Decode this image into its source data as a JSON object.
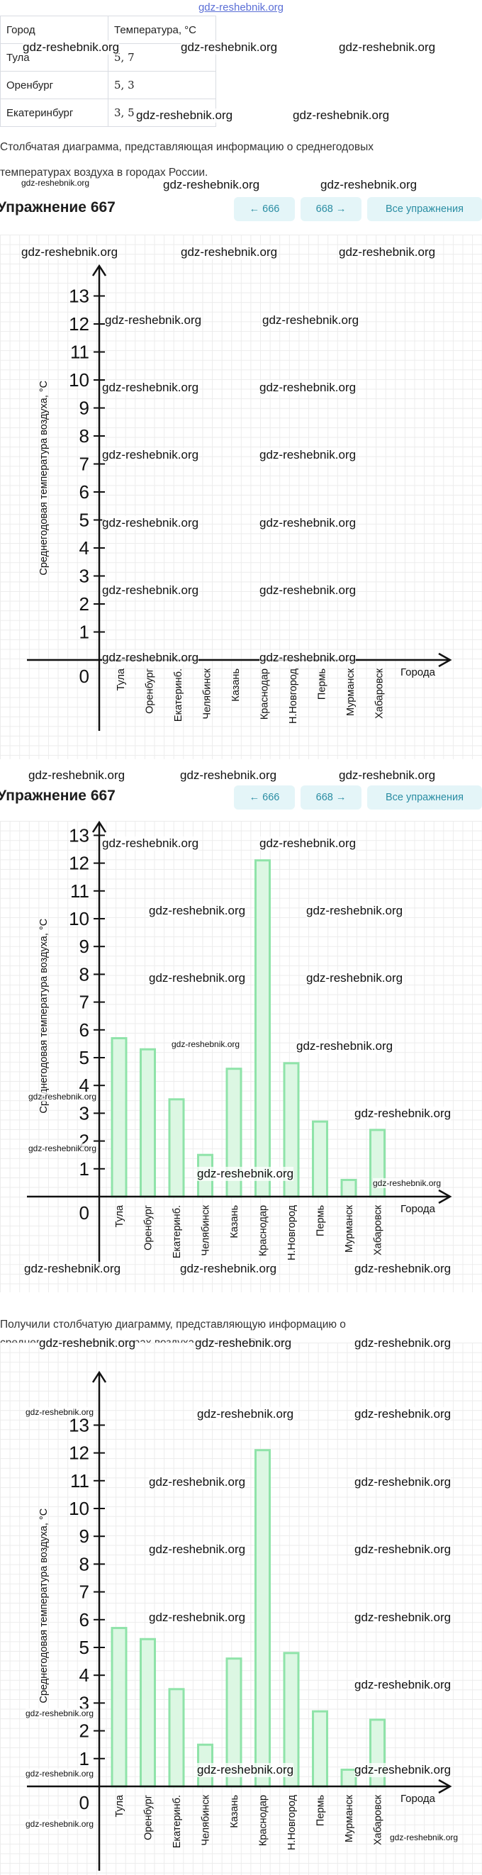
{
  "header": {
    "site_link": "gdz-reshebnik.org"
  },
  "table": {
    "headers": [
      "Город",
      "Температура, °C"
    ],
    "rows": [
      [
        "Тула",
        "5, 7"
      ],
      [
        "Оренбург",
        "5, 3"
      ],
      [
        "Екатеринбург",
        "3, 5"
      ]
    ]
  },
  "text": {
    "description_line1": "Столбчатая диаграмма, представляющая информацию о среднегодовых",
    "description_line2": "температурах воздуха в городах России.",
    "result_line1": "Получили столбчатую диаграмму, представляющую информацию о",
    "result_line2": "среднегодовых температурах воздуха в городах России."
  },
  "exercise": {
    "title": "Упражнение 667",
    "prev_label": "← 666",
    "next_label": "668 →",
    "all_label": "Все упражнения"
  },
  "watermark": "gdz-reshebnik.org",
  "colors": {
    "bar_fill": "#dcf7e3",
    "bar_stroke": "#8fe3a9",
    "nav_bg": "#e4f5f8",
    "nav_text": "#2a8da3"
  },
  "chart_data": [
    {
      "type": "bar",
      "title": "",
      "xlabel": "Города",
      "ylabel": "Среднегодовая температура воздуха, °C",
      "ylim": [
        0,
        13
      ],
      "origin_label": "0",
      "yticks": [
        1,
        2,
        3,
        4,
        5,
        6,
        7,
        8,
        9,
        10,
        11,
        12,
        13
      ],
      "categories": [
        "Тула",
        "Оренбург",
        "Екатеринб.",
        "Челябинск",
        "Казань",
        "Краснодар",
        "Н.Новгород",
        "Пермь",
        "Мурманск",
        "Хабаровск"
      ],
      "values": [
        0,
        0,
        0,
        0,
        0,
        0,
        0,
        0,
        0,
        0
      ],
      "show_bars": false
    },
    {
      "type": "bar",
      "title": "",
      "xlabel": "Города",
      "ylabel": "Среднегодовая температура воздуха, °C",
      "ylim": [
        0,
        13
      ],
      "origin_label": "0",
      "yticks": [
        1,
        2,
        3,
        4,
        5,
        6,
        7,
        8,
        9,
        10,
        11,
        12,
        13
      ],
      "categories": [
        "Тула",
        "Оренбург",
        "Екатеринб.",
        "Челябинск",
        "Казань",
        "Краснодар",
        "Н.Новгород",
        "Пермь",
        "Мурманск",
        "Хабаровск"
      ],
      "values": [
        5.7,
        5.3,
        3.5,
        1.5,
        4.6,
        12.1,
        4.8,
        2.7,
        0.6,
        2.4
      ],
      "show_bars": true
    },
    {
      "type": "bar",
      "title": "",
      "xlabel": "Города",
      "ylabel": "Среднегодовая температура воздуха, °C",
      "ylim": [
        0,
        13
      ],
      "origin_label": "0",
      "yticks": [
        1,
        2,
        3,
        4,
        5,
        6,
        7,
        8,
        9,
        10,
        11,
        12,
        13
      ],
      "categories": [
        "Тула",
        "Оренбург",
        "Екатеринб.",
        "Челябинск",
        "Казань",
        "Краснодар",
        "Н.Новгород",
        "Пермь",
        "Мурманск",
        "Хабаровск"
      ],
      "values": [
        5.7,
        5.3,
        3.5,
        1.5,
        4.6,
        12.1,
        4.8,
        2.7,
        0.6,
        2.4
      ],
      "show_bars": true
    }
  ]
}
